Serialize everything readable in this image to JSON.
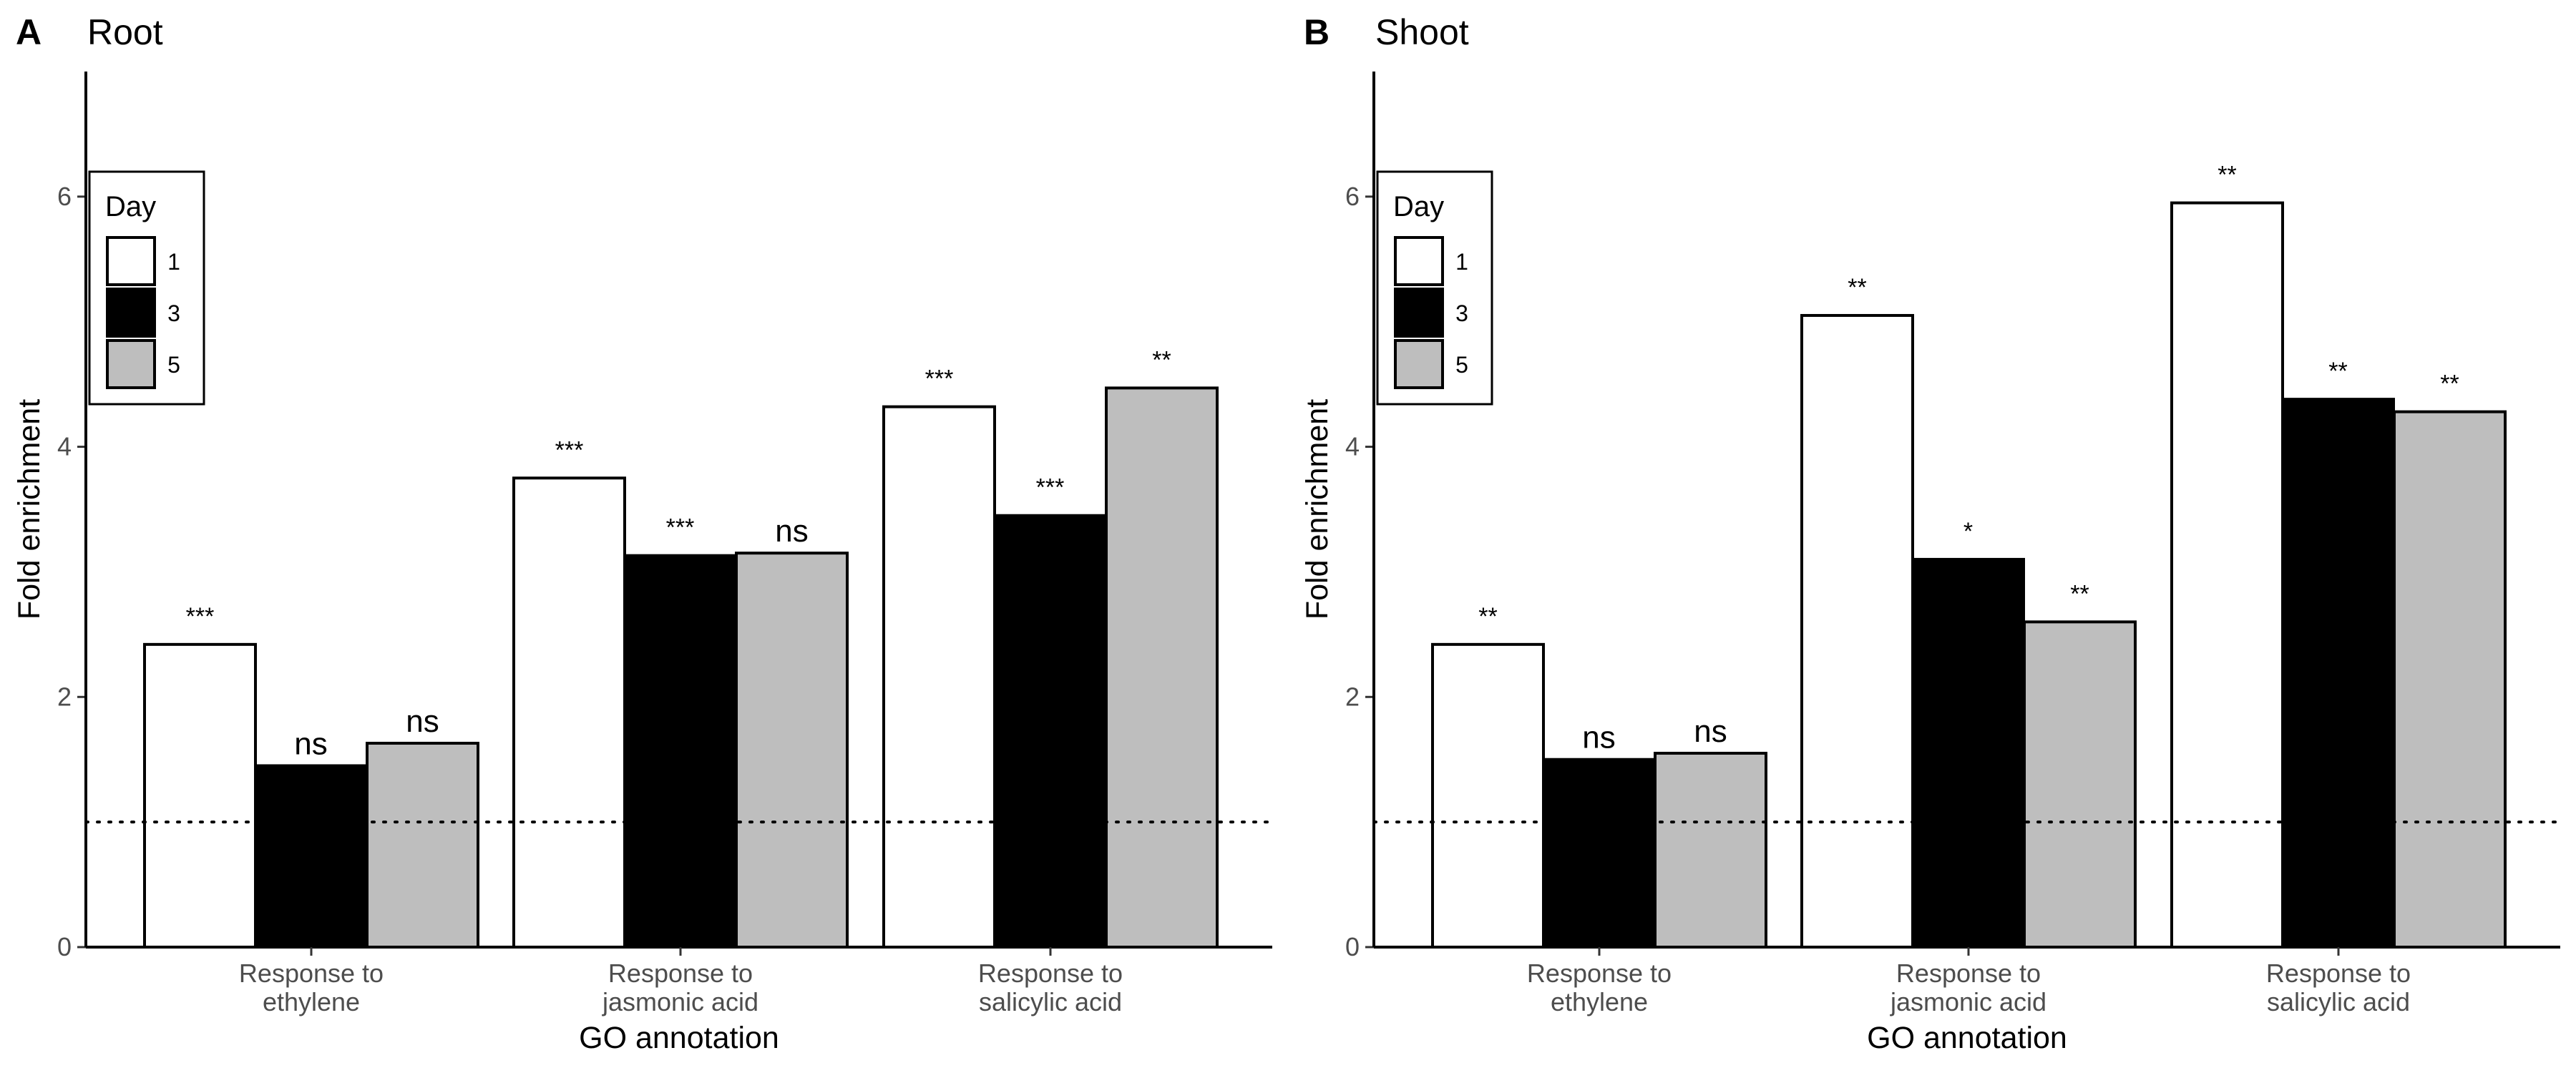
{
  "legend": {
    "title": "Day",
    "items": [
      {
        "label": "1",
        "color": "#ffffff"
      },
      {
        "label": "3",
        "color": "#000000"
      },
      {
        "label": "5",
        "color": "#bebebe"
      }
    ]
  },
  "chart_data": [
    {
      "type": "bar",
      "panel_letter": "A",
      "title": "Root",
      "xlabel": "GO annotation",
      "ylabel": "Fold enrichment",
      "ylim": [
        0,
        7
      ],
      "yticks": [
        "0",
        "2",
        "4",
        "6"
      ],
      "reference_line": 1,
      "categories": [
        [
          "Response to",
          "ethylene"
        ],
        [
          "Response to",
          "jasmonic acid"
        ],
        [
          "Response to",
          "salicylic acid"
        ]
      ],
      "series": [
        {
          "name": "1",
          "values": [
            2.42,
            3.75,
            4.32
          ],
          "labels": [
            "***",
            "***",
            "***"
          ]
        },
        {
          "name": "3",
          "values": [
            1.45,
            3.13,
            3.45
          ],
          "labels": [
            "ns",
            "***",
            "***"
          ]
        },
        {
          "name": "5",
          "values": [
            1.63,
            3.15,
            4.47
          ],
          "labels": [
            "ns",
            "ns",
            "**"
          ]
        }
      ]
    },
    {
      "type": "bar",
      "panel_letter": "B",
      "title": "Shoot",
      "xlabel": "GO annotation",
      "ylabel": "Fold enrichment",
      "ylim": [
        0,
        7
      ],
      "yticks": [
        "0",
        "2",
        "4",
        "6"
      ],
      "reference_line": 1,
      "categories": [
        [
          "Response to",
          "ethylene"
        ],
        [
          "Response to",
          "jasmonic acid"
        ],
        [
          "Response to",
          "salicylic acid"
        ]
      ],
      "series": [
        {
          "name": "1",
          "values": [
            2.42,
            5.05,
            5.95
          ],
          "labels": [
            "**",
            "**",
            "**"
          ]
        },
        {
          "name": "3",
          "values": [
            1.5,
            3.1,
            4.38
          ],
          "labels": [
            "ns",
            "*",
            "**"
          ]
        },
        {
          "name": "5",
          "values": [
            1.55,
            2.6,
            4.28
          ],
          "labels": [
            "ns",
            "**",
            "**"
          ]
        }
      ]
    }
  ]
}
